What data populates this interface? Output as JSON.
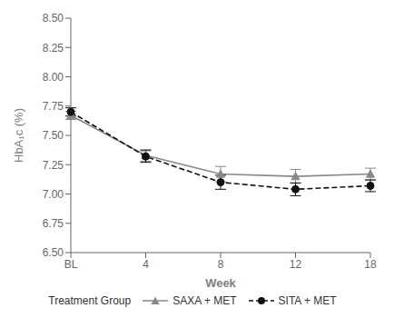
{
  "chart_data": {
    "type": "line",
    "categories": [
      "BL",
      "4",
      "8",
      "12",
      "18"
    ],
    "series": [
      {
        "name": "SAXA + MET",
        "color": "#888888",
        "marker": "triangle",
        "line_style": "solid",
        "values": [
          7.67,
          7.33,
          7.17,
          7.15,
          7.17
        ],
        "error": [
          0.035,
          0.05,
          0.065,
          0.06,
          0.05
        ]
      },
      {
        "name": "SITA + MET",
        "color": "#111111",
        "marker": "circle",
        "line_style": "dashed",
        "values": [
          7.7,
          7.32,
          7.1,
          7.04,
          7.07
        ],
        "error": [
          0.035,
          0.05,
          0.06,
          0.055,
          0.05
        ]
      }
    ],
    "xlabel": "Week",
    "ylabel": "HbA₁c (%)",
    "ylim": [
      6.5,
      8.5
    ],
    "yticks": [
      {
        "value": 6.5,
        "label": "6.50"
      },
      6.75,
      {
        "value": 7,
        "label": "7.00"
      },
      7.25,
      {
        "value": 7.5,
        "label": "7.50"
      },
      7.75,
      {
        "value": 8,
        "label": "8.00"
      },
      8.25,
      {
        "value": 8.5,
        "label": "8.50"
      }
    ],
    "grid": false,
    "legend": "bottom",
    "legend_title": "Treatment Group"
  }
}
